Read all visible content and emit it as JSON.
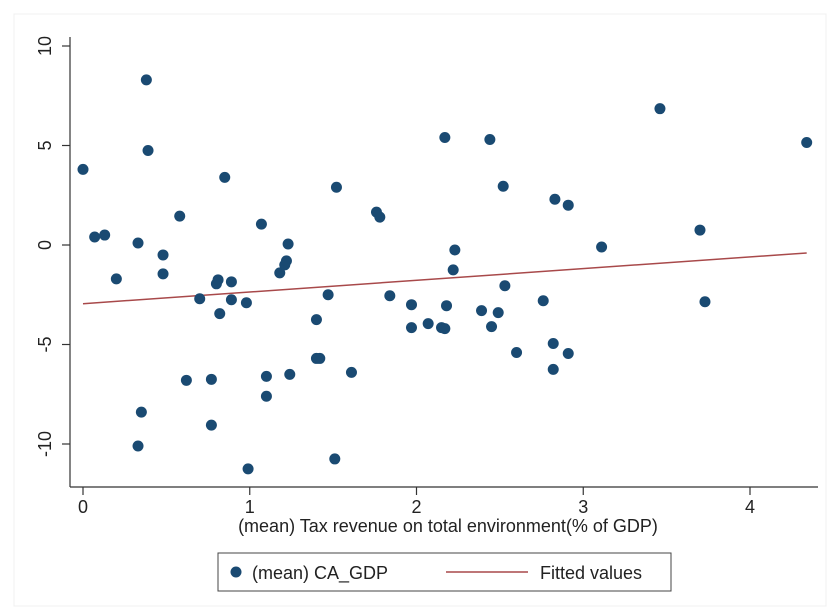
{
  "chart_data": {
    "type": "scatter",
    "xlabel": "(mean) Tax revenue on total environment(% of GDP)",
    "ylabel": "",
    "xlim": [
      -0.1,
      4.4
    ],
    "ylim": [
      -12,
      10.8
    ],
    "xticks": [
      0,
      1,
      2,
      3,
      4
    ],
    "yticks": [
      -10,
      -5,
      0,
      5,
      10
    ],
    "xtick_labels": [
      "0",
      "1",
      "2",
      "3",
      "4"
    ],
    "ytick_labels": [
      "-10",
      "-5",
      "0",
      "5",
      "10"
    ],
    "grid": false,
    "legend_position": "bottom",
    "series": [
      {
        "name": "(mean) CA_GDP",
        "kind": "scatter",
        "color": "#1a4a72",
        "points": [
          [
            0.0,
            3.8
          ],
          [
            0.07,
            0.4
          ],
          [
            0.13,
            0.5
          ],
          [
            0.2,
            -1.7
          ],
          [
            0.33,
            0.1
          ],
          [
            0.33,
            -10.1
          ],
          [
            0.35,
            -8.4
          ],
          [
            0.38,
            8.3
          ],
          [
            0.39,
            4.75
          ],
          [
            0.48,
            -0.5
          ],
          [
            0.48,
            -1.45
          ],
          [
            0.58,
            1.45
          ],
          [
            0.62,
            -6.8
          ],
          [
            0.7,
            -2.7
          ],
          [
            0.77,
            -6.75
          ],
          [
            0.77,
            -9.05
          ],
          [
            0.8,
            -1.95
          ],
          [
            0.81,
            -1.75
          ],
          [
            0.82,
            -3.45
          ],
          [
            0.85,
            3.4
          ],
          [
            0.89,
            -1.85
          ],
          [
            0.89,
            -2.75
          ],
          [
            0.98,
            -2.9
          ],
          [
            0.99,
            -11.25
          ],
          [
            1.07,
            1.05
          ],
          [
            1.1,
            -6.6
          ],
          [
            1.1,
            -7.6
          ],
          [
            1.18,
            -1.4
          ],
          [
            1.21,
            -1.0
          ],
          [
            1.22,
            -0.8
          ],
          [
            1.23,
            0.05
          ],
          [
            1.24,
            -6.5
          ],
          [
            1.4,
            -3.75
          ],
          [
            1.4,
            -5.7
          ],
          [
            1.42,
            -5.7
          ],
          [
            1.47,
            -2.5
          ],
          [
            1.51,
            -10.75
          ],
          [
            1.52,
            2.9
          ],
          [
            1.61,
            -6.4
          ],
          [
            1.76,
            1.65
          ],
          [
            1.78,
            1.4
          ],
          [
            1.84,
            -2.55
          ],
          [
            1.97,
            -3.0
          ],
          [
            1.97,
            -4.15
          ],
          [
            2.07,
            -3.95
          ],
          [
            2.15,
            -4.15
          ],
          [
            2.17,
            -4.2
          ],
          [
            2.17,
            5.4
          ],
          [
            2.18,
            -3.05
          ],
          [
            2.22,
            -1.25
          ],
          [
            2.23,
            -0.25
          ],
          [
            2.39,
            -3.3
          ],
          [
            2.44,
            5.3
          ],
          [
            2.45,
            -4.1
          ],
          [
            2.49,
            -3.4
          ],
          [
            2.52,
            2.95
          ],
          [
            2.53,
            -2.05
          ],
          [
            2.6,
            -5.4
          ],
          [
            2.76,
            -2.8
          ],
          [
            2.82,
            -4.95
          ],
          [
            2.82,
            -6.25
          ],
          [
            2.83,
            2.3
          ],
          [
            2.91,
            2.0
          ],
          [
            2.91,
            -5.45
          ],
          [
            3.11,
            -0.1
          ],
          [
            3.46,
            6.85
          ],
          [
            3.7,
            0.75
          ],
          [
            3.73,
            -2.85
          ],
          [
            4.34,
            5.15
          ]
        ]
      },
      {
        "name": "Fitted values",
        "kind": "line",
        "color": "#a8494a",
        "points": [
          [
            0.0,
            -2.95
          ],
          [
            4.34,
            -0.4
          ]
        ]
      }
    ]
  }
}
